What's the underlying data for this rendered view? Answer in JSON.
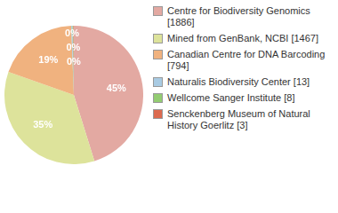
{
  "chart_data": {
    "type": "pie",
    "categories": [
      "Centre for Biodiversity Genomics [1886]",
      "Mined from GenBank, NCBI [1467]",
      "Canadian Centre for DNA Barcoding [794]",
      "Naturalis Biodiversity Center [13]",
      "Wellcome Sanger Institute [8]",
      "Senckenberg Museum of Natural History Goerlitz [3]"
    ],
    "values": [
      45.2,
      35.2,
      19.0,
      0.3,
      0.2,
      0.1
    ],
    "value_labels": [
      "45%",
      "35%",
      "19%",
      "0%",
      "0%",
      "0%"
    ],
    "colors": [
      "#e3a9a2",
      "#dde39b",
      "#f0b27f",
      "#a9cbe3",
      "#93cc72",
      "#dc6a4f"
    ],
    "data_labels": true,
    "legend": "right"
  }
}
